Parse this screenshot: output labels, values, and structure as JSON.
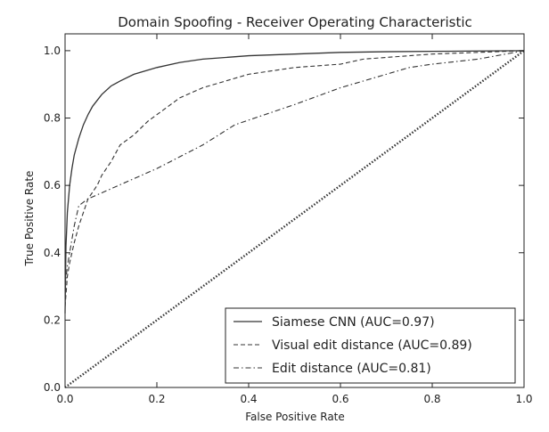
{
  "chart_data": {
    "type": "line",
    "title": "Domain Spoofing - Receiver Operating Characteristic",
    "xlabel": "False Positive Rate",
    "ylabel": "True Positive Rate",
    "xlim": [
      0.0,
      1.0
    ],
    "ylim": [
      0.0,
      1.05
    ],
    "xticks": [
      "0.0",
      "0.2",
      "0.4",
      "0.6",
      "0.8",
      "1.0"
    ],
    "yticks": [
      "0.0",
      "0.2",
      "0.4",
      "0.6",
      "0.8",
      "1.0"
    ],
    "grid": false,
    "legend_position": "lower-right",
    "series": [
      {
        "name": "Siamese CNN (AUC=0.97)",
        "style": "solid",
        "color": "#333333",
        "x": [
          0.0,
          0.002,
          0.005,
          0.01,
          0.015,
          0.02,
          0.03,
          0.04,
          0.05,
          0.06,
          0.08,
          0.1,
          0.12,
          0.15,
          0.2,
          0.25,
          0.3,
          0.4,
          0.5,
          0.6,
          0.7,
          0.8,
          0.9,
          1.0
        ],
        "y": [
          0.22,
          0.42,
          0.52,
          0.6,
          0.65,
          0.69,
          0.74,
          0.78,
          0.81,
          0.835,
          0.87,
          0.895,
          0.91,
          0.93,
          0.95,
          0.965,
          0.975,
          0.985,
          0.99,
          0.995,
          0.997,
          0.998,
          0.999,
          1.0
        ]
      },
      {
        "name": "Visual edit distance (AUC=0.89)",
        "style": "dashed",
        "color": "#333333",
        "x": [
          0.0,
          0.005,
          0.01,
          0.02,
          0.03,
          0.04,
          0.05,
          0.06,
          0.07,
          0.08,
          0.1,
          0.12,
          0.15,
          0.18,
          0.2,
          0.25,
          0.3,
          0.35,
          0.4,
          0.5,
          0.6,
          0.65,
          0.7,
          0.8,
          0.9,
          1.0
        ],
        "y": [
          0.24,
          0.33,
          0.37,
          0.43,
          0.48,
          0.52,
          0.56,
          0.58,
          0.6,
          0.63,
          0.67,
          0.72,
          0.75,
          0.79,
          0.81,
          0.86,
          0.89,
          0.91,
          0.93,
          0.95,
          0.96,
          0.975,
          0.98,
          0.99,
          0.995,
          1.0
        ]
      },
      {
        "name": "Edit distance (AUC=0.81)",
        "style": "dashdot",
        "color": "#333333",
        "x": [
          0.0,
          0.005,
          0.01,
          0.02,
          0.03,
          0.05,
          0.1,
          0.2,
          0.3,
          0.37,
          0.5,
          0.6,
          0.7,
          0.75,
          0.8,
          0.9,
          1.0
        ],
        "y": [
          0.3,
          0.36,
          0.4,
          0.48,
          0.54,
          0.56,
          0.59,
          0.65,
          0.72,
          0.78,
          0.84,
          0.89,
          0.93,
          0.95,
          0.96,
          0.975,
          1.0
        ]
      },
      {
        "name": "",
        "style": "dotted",
        "color": "#333333",
        "x": [
          0.0,
          1.0
        ],
        "y": [
          0.0,
          1.0
        ]
      }
    ]
  }
}
